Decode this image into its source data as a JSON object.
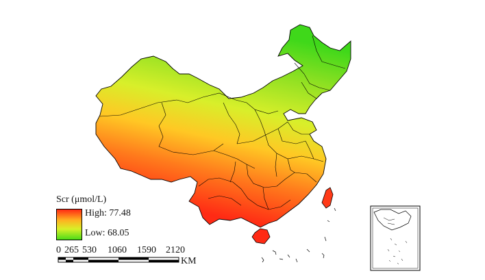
{
  "legend": {
    "title": "Scr (μmol/L)",
    "high_label": "High: 77.48",
    "low_label": "Low: 68.05",
    "high_value": 77.48,
    "low_value": 68.05,
    "ramp_colors": [
      "#ff2a14",
      "#ffb020",
      "#d8f028",
      "#4cdc18"
    ]
  },
  "scale_bar": {
    "labels": [
      "0",
      "265",
      "530",
      "1060",
      "1590",
      "2120"
    ],
    "unit": "KM"
  },
  "map": {
    "region": "China",
    "high_color": "#ff2a14",
    "low_color": "#4cdc18"
  }
}
